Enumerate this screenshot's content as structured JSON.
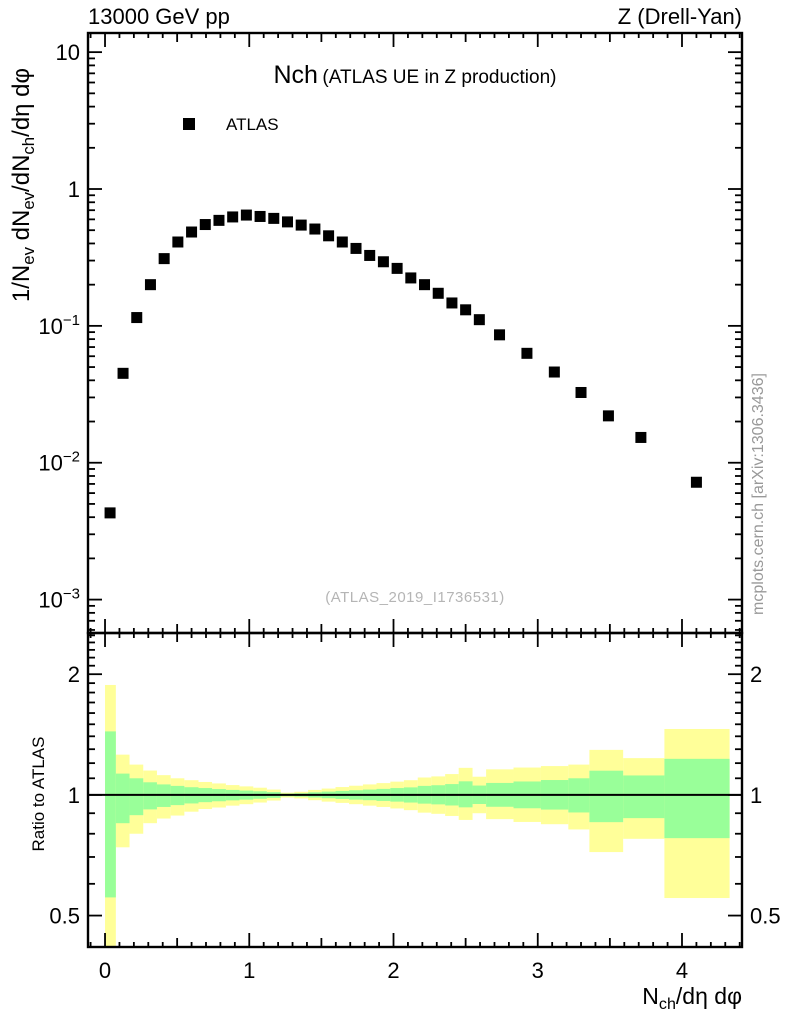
{
  "header": {
    "left": "13000 GeV pp",
    "right": "Z (Drell-Yan)"
  },
  "title": {
    "main": "Nch",
    "detail": "(ATLAS UE in Z production)"
  },
  "legend": {
    "entries": [
      {
        "label": "ATLAS",
        "marker": "black-filled-square"
      }
    ]
  },
  "watermark": "(ATLAS_2019_I1736531)",
  "side_note": "mcplots.cern.ch [arXiv:1306.3436]",
  "colors": {
    "band_outer": "#ffff99",
    "band_inner": "#99ff99",
    "marker": "#000000",
    "watermark": "#b5b5b5",
    "side_note": "#999999"
  },
  "chart_data": {
    "type": "scatter",
    "x_axis": {
      "label_segments": [
        {
          "t": "N"
        },
        {
          "t": "ch",
          "sub": true
        },
        {
          "t": "/dη dφ"
        }
      ],
      "lim": [
        -0.118,
        4.416
      ],
      "ticks": [
        0,
        1,
        2,
        3,
        4
      ],
      "minor_step": 0.1
    },
    "top_panel": {
      "y_axis": {
        "label_segments": [
          {
            "t": "1/N"
          },
          {
            "t": "ev",
            "sub": true
          },
          {
            "t": " dN"
          },
          {
            "t": "ev",
            "sub": true
          },
          {
            "t": "/dN"
          },
          {
            "t": "ch",
            "sub": true
          },
          {
            "t": "/dη dφ"
          }
        ],
        "scale": "log",
        "lim": [
          0.00057,
          13.8
        ],
        "ticks": [
          {
            "v": 10,
            "base": "10"
          },
          {
            "v": 1,
            "base": "1"
          },
          {
            "v": 0.1,
            "base": "10",
            "exp": "−1"
          },
          {
            "v": 0.01,
            "base": "10",
            "exp": "−2"
          },
          {
            "v": 0.001,
            "base": "10",
            "exp": "−3"
          }
        ]
      },
      "series": [
        {
          "name": "ATLAS",
          "marker": "filled-square",
          "color": "#000000",
          "points": [
            [
              0.035,
              0.0043
            ],
            [
              0.125,
              0.045
            ],
            [
              0.22,
              0.115
            ],
            [
              0.315,
              0.2
            ],
            [
              0.41,
              0.31
            ],
            [
              0.505,
              0.41
            ],
            [
              0.6,
              0.485
            ],
            [
              0.695,
              0.55
            ],
            [
              0.79,
              0.59
            ],
            [
              0.885,
              0.625
            ],
            [
              0.98,
              0.645
            ],
            [
              1.075,
              0.63
            ],
            [
              1.17,
              0.61
            ],
            [
              1.265,
              0.575
            ],
            [
              1.36,
              0.545
            ],
            [
              1.455,
              0.51
            ],
            [
              1.55,
              0.455
            ],
            [
              1.645,
              0.41
            ],
            [
              1.74,
              0.368
            ],
            [
              1.835,
              0.327
            ],
            [
              1.93,
              0.294
            ],
            [
              2.025,
              0.263
            ],
            [
              2.12,
              0.224
            ],
            [
              2.215,
              0.2
            ],
            [
              2.31,
              0.173
            ],
            [
              2.405,
              0.147
            ],
            [
              2.5,
              0.131
            ],
            [
              2.595,
              0.111
            ],
            [
              2.735,
              0.086
            ],
            [
              2.925,
              0.063
            ],
            [
              3.115,
              0.046
            ],
            [
              3.3,
              0.0326
            ],
            [
              3.49,
              0.022
            ],
            [
              3.715,
              0.0153
            ],
            [
              4.1,
              0.0072
            ]
          ]
        }
      ]
    },
    "bottom_panel": {
      "y_axis": {
        "label": "Ratio to ATLAS",
        "scale": "log",
        "lim": [
          0.4174,
          2.534
        ],
        "ticks": [
          {
            "v": 2,
            "t": "2"
          },
          {
            "v": 1,
            "t": "1"
          },
          {
            "v": 0.5,
            "t": "0.5"
          }
        ]
      },
      "reference_line": 1,
      "band_colors": {
        "outer": "#ffff99",
        "inner": "#99ff99"
      },
      "bands_format": "[x0, x1, outer_lo, outer_hi, inner_lo, inner_hi]",
      "bands": [
        [
          0.0,
          0.075,
          0.4,
          1.88,
          0.555,
          1.44
        ],
        [
          0.075,
          0.17,
          0.74,
          1.26,
          0.85,
          1.13
        ],
        [
          0.17,
          0.265,
          0.8,
          1.19,
          0.89,
          1.1
        ],
        [
          0.265,
          0.36,
          0.85,
          1.15,
          0.92,
          1.075
        ],
        [
          0.36,
          0.455,
          0.873,
          1.12,
          0.933,
          1.062
        ],
        [
          0.455,
          0.55,
          0.888,
          1.1,
          0.943,
          1.053
        ],
        [
          0.55,
          0.648,
          0.908,
          1.088,
          0.952,
          1.045
        ],
        [
          0.648,
          0.742,
          0.922,
          1.077,
          0.959,
          1.04
        ],
        [
          0.742,
          0.838,
          0.93,
          1.068,
          0.964,
          1.034
        ],
        [
          0.838,
          0.932,
          0.94,
          1.058,
          0.969,
          1.029
        ],
        [
          0.932,
          1.028,
          0.948,
          1.05,
          0.973,
          1.025
        ],
        [
          1.028,
          1.122,
          0.957,
          1.042,
          0.978,
          1.021
        ],
        [
          1.122,
          1.218,
          0.968,
          1.031,
          0.983,
          1.016
        ],
        [
          1.218,
          1.312,
          0.985,
          1.013,
          0.992,
          1.007
        ],
        [
          1.312,
          1.408,
          0.98,
          1.018,
          0.99,
          1.009
        ],
        [
          1.408,
          1.502,
          0.97,
          1.029,
          0.985,
          1.015
        ],
        [
          1.502,
          1.598,
          0.962,
          1.037,
          0.981,
          1.019
        ],
        [
          1.598,
          1.692,
          0.955,
          1.046,
          0.977,
          1.023
        ],
        [
          1.692,
          1.788,
          0.948,
          1.054,
          0.973,
          1.027
        ],
        [
          1.788,
          1.882,
          0.94,
          1.062,
          0.97,
          1.031
        ],
        [
          1.882,
          1.978,
          0.933,
          1.07,
          0.966,
          1.035
        ],
        [
          1.978,
          2.072,
          0.925,
          1.079,
          0.962,
          1.04
        ],
        [
          2.072,
          2.168,
          0.916,
          1.088,
          0.957,
          1.044
        ],
        [
          2.168,
          2.262,
          0.903,
          1.105,
          0.951,
          1.053
        ],
        [
          2.262,
          2.358,
          0.897,
          1.112,
          0.947,
          1.057
        ],
        [
          2.358,
          2.452,
          0.886,
          1.127,
          0.941,
          1.064
        ],
        [
          2.452,
          2.548,
          0.866,
          1.168,
          0.931,
          1.081
        ],
        [
          2.548,
          2.642,
          0.9,
          1.11,
          0.949,
          1.055
        ],
        [
          2.642,
          2.832,
          0.87,
          1.158,
          0.934,
          1.071
        ],
        [
          2.832,
          3.022,
          0.856,
          1.17,
          0.926,
          1.08
        ],
        [
          3.022,
          3.212,
          0.845,
          1.18,
          0.919,
          1.089
        ],
        [
          3.212,
          3.358,
          0.82,
          1.19,
          0.904,
          1.1
        ],
        [
          3.358,
          3.592,
          0.72,
          1.295,
          0.855,
          1.149
        ],
        [
          3.592,
          3.878,
          0.777,
          1.235,
          0.875,
          1.118
        ],
        [
          3.878,
          4.33,
          0.553,
          1.46,
          0.78,
          1.23
        ]
      ]
    }
  }
}
